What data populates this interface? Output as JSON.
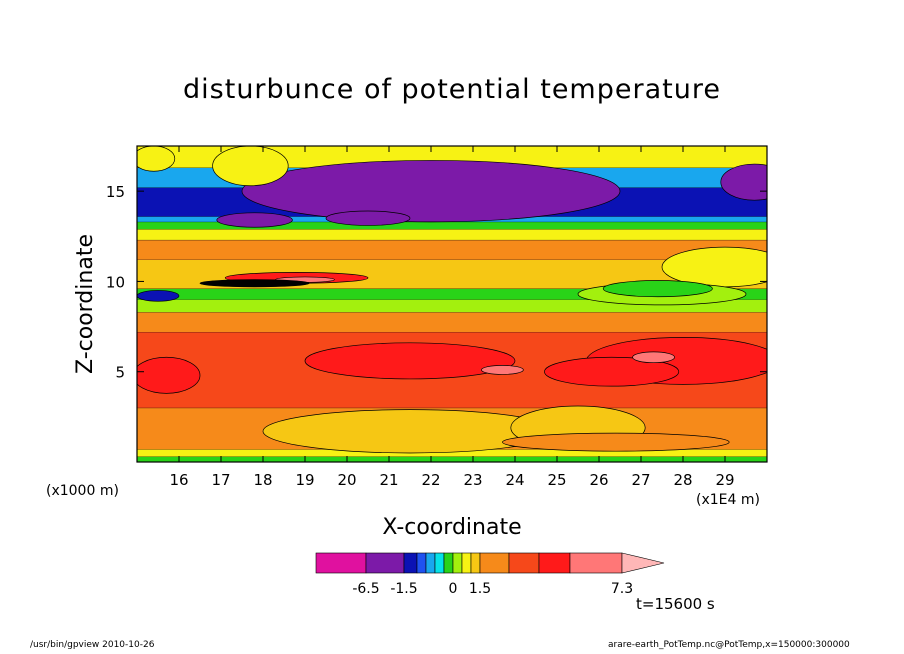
{
  "chart_data": {
    "type": "heatmap",
    "title": "disturbunce of potential temperature",
    "xlabel": "X-coordinate",
    "ylabel": "Z-coordinate",
    "x_unit_left": "(x1000 m)",
    "x_unit_right": "(x1E4 m)",
    "x_ticks": [
      16,
      17,
      18,
      19,
      20,
      21,
      22,
      23,
      24,
      25,
      26,
      27,
      28,
      29
    ],
    "y_ticks": [
      5,
      10,
      15
    ],
    "xlim": [
      15.0,
      30.0
    ],
    "ylim": [
      0,
      17.5
    ],
    "colorbar": {
      "tick_labels": [
        "-6.5",
        "-1.5",
        "0",
        "1.5",
        "7.3"
      ],
      "tick_values": [
        -6.5,
        -1.5,
        0,
        1.5,
        7.3
      ],
      "colors": [
        "#e0119f",
        "#7c1aa8",
        "#0b12b4",
        "#1f52f0",
        "#19a7ee",
        "#06e2e8",
        "#29d318",
        "#a3f00e",
        "#f7f214",
        "#f6c714",
        "#f68a1a",
        "#f6481a",
        "#ff1a1a",
        "#ff7777",
        "#ffb7b7"
      ],
      "extend": "max"
    },
    "time_label": "t=15600 s",
    "bands": [
      {
        "z": [
          0.0,
          0.3
        ],
        "color": "#29d318"
      },
      {
        "z": [
          0.3,
          0.7
        ],
        "color": "#f7f214"
      },
      {
        "z": [
          0.7,
          3.0
        ],
        "color": "#f68a1a"
      },
      {
        "z": [
          3.0,
          7.2
        ],
        "color": "#f6481a"
      },
      {
        "z": [
          7.2,
          8.3
        ],
        "color": "#f68a1a"
      },
      {
        "z": [
          8.3,
          9.0
        ],
        "color": "#a3f00e"
      },
      {
        "z": [
          9.0,
          9.6
        ],
        "color": "#29d318"
      },
      {
        "z": [
          9.6,
          11.2
        ],
        "color": "#f6c714"
      },
      {
        "z": [
          11.2,
          12.3
        ],
        "color": "#f68a1a"
      },
      {
        "z": [
          12.3,
          12.9
        ],
        "color": "#f7f214"
      },
      {
        "z": [
          12.9,
          13.3
        ],
        "color": "#29d318"
      },
      {
        "z": [
          13.3,
          13.6
        ],
        "color": "#19a7ee"
      },
      {
        "z": [
          13.6,
          15.2
        ],
        "color": "#0b12b4"
      },
      {
        "z": [
          15.2,
          16.3
        ],
        "color": "#19a7ee"
      },
      {
        "z": [
          16.3,
          17.5
        ],
        "color": "#f7f214"
      }
    ],
    "blobs": [
      {
        "x": 22.0,
        "z": 15.0,
        "rx": 4.5,
        "rz": 1.7,
        "color": "#7c1aa8"
      },
      {
        "x": 17.8,
        "z": 13.4,
        "rx": 0.9,
        "rz": 0.4,
        "color": "#7c1aa8"
      },
      {
        "x": 20.5,
        "z": 13.5,
        "rx": 1.0,
        "rz": 0.4,
        "color": "#7c1aa8"
      },
      {
        "x": 29.7,
        "z": 15.5,
        "rx": 0.8,
        "rz": 1.0,
        "color": "#7c1aa8"
      },
      {
        "x": 15.4,
        "z": 16.8,
        "rx": 0.5,
        "rz": 0.7,
        "color": "#f7f214"
      },
      {
        "x": 17.7,
        "z": 16.4,
        "rx": 0.9,
        "rz": 1.1,
        "color": "#f7f214"
      },
      {
        "x": 18.8,
        "z": 10.2,
        "rx": 1.7,
        "rz": 0.3,
        "color": "#ff1a1a"
      },
      {
        "x": 21.5,
        "z": 5.6,
        "rx": 2.5,
        "rz": 1.0,
        "color": "#ff1a1a"
      },
      {
        "x": 28.0,
        "z": 5.6,
        "rx": 2.3,
        "rz": 1.3,
        "color": "#ff1a1a"
      },
      {
        "x": 26.3,
        "z": 5.0,
        "rx": 1.6,
        "rz": 0.8,
        "color": "#ff1a1a"
      },
      {
        "x": 15.7,
        "z": 4.8,
        "rx": 0.8,
        "rz": 1.0,
        "color": "#ff1a1a"
      },
      {
        "x": 27.3,
        "z": 5.8,
        "rx": 0.5,
        "rz": 0.3,
        "color": "#ff7777"
      },
      {
        "x": 23.7,
        "z": 5.1,
        "rx": 0.5,
        "rz": 0.25,
        "color": "#ff7777"
      },
      {
        "x": 19.0,
        "z": 10.1,
        "rx": 0.7,
        "rz": 0.15,
        "color": "#ff7777"
      },
      {
        "x": 29.0,
        "z": 10.8,
        "rx": 1.5,
        "rz": 1.1,
        "color": "#f7f214"
      },
      {
        "x": 27.5,
        "z": 9.3,
        "rx": 2.0,
        "rz": 0.6,
        "color": "#a3f00e"
      },
      {
        "x": 27.4,
        "z": 9.6,
        "rx": 1.3,
        "rz": 0.45,
        "color": "#29d318"
      },
      {
        "x": 17.8,
        "z": 9.9,
        "rx": 1.3,
        "rz": 0.2,
        "color": "#000000"
      },
      {
        "x": 15.5,
        "z": 9.2,
        "rx": 0.5,
        "rz": 0.3,
        "color": "#0b12b4"
      },
      {
        "x": 21.5,
        "z": 1.7,
        "rx": 3.5,
        "rz": 1.2,
        "color": "#f6c714"
      },
      {
        "x": 25.5,
        "z": 1.9,
        "rx": 1.6,
        "rz": 1.2,
        "color": "#f6c714"
      },
      {
        "x": 26.4,
        "z": 1.1,
        "rx": 2.7,
        "rz": 0.5,
        "color": "#f68a1a"
      }
    ]
  },
  "footer": {
    "left": "/usr/bin/gpview  2010-10-26",
    "right": "arare-earth_PotTemp.nc@PotTemp,x=150000:300000"
  }
}
